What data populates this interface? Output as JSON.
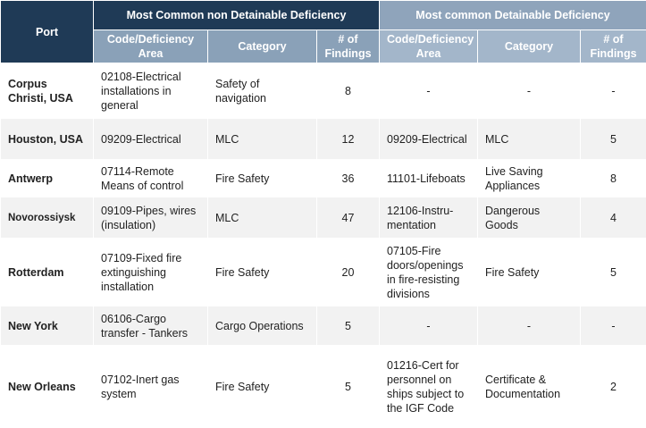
{
  "header": {
    "port": "Port",
    "non_detainable_title": "Most Common non Detainable Deficiency",
    "detainable_title": "Most common Detainable Deficiency",
    "code_area": "Code/Deficiency Area",
    "category": "Category",
    "findings": "# of Findings"
  },
  "rows": [
    {
      "port": "Corpus Christi, USA",
      "nd_code": "02108-Electrical installations in general",
      "nd_category": "Safety of navigation",
      "nd_findings": "8",
      "d_code": "-",
      "d_category": "-",
      "d_findings": "-"
    },
    {
      "port": "Houston, USA",
      "nd_code": "09209-Electrical",
      "nd_category": "MLC",
      "nd_findings": "12",
      "d_code": "09209-Electrical",
      "d_category": "MLC",
      "d_findings": "5"
    },
    {
      "port": "Antwerp",
      "nd_code": "07114-Remote Means of control",
      "nd_category": "Fire Safety",
      "nd_findings": "36",
      "d_code": "11101-Lifeboats",
      "d_category": "Live Saving Appliances",
      "d_findings": "8"
    },
    {
      "port": "Novorossiysk",
      "nd_code": "09109-Pipes, wires (insulation)",
      "nd_category": "MLC",
      "nd_findings": "47",
      "d_code": "12106-Instru-mentation",
      "d_category": "Dangerous Goods",
      "d_findings": "4"
    },
    {
      "port": "Rotterdam",
      "nd_code": "07109-Fixed fire extinguishing installation",
      "nd_category": "Fire Safety",
      "nd_findings": "20",
      "d_code": "07105-Fire doors/openings in fire-resisting divisions",
      "d_category": "Fire Safety",
      "d_findings": "5"
    },
    {
      "port": "New York",
      "nd_code": "06106-Cargo transfer - Tankers",
      "nd_category": "Cargo Operations",
      "nd_findings": "5",
      "d_code": "-",
      "d_category": "-",
      "d_findings": "-"
    },
    {
      "port": "New Orleans",
      "nd_code": "07102-Inert gas system",
      "nd_category": "Fire Safety",
      "nd_findings": "5",
      "d_code": "01216-Cert for personnel on ships subject to the IGF Code",
      "d_category": "Certificate & Documentation",
      "d_findings": "2"
    }
  ]
}
